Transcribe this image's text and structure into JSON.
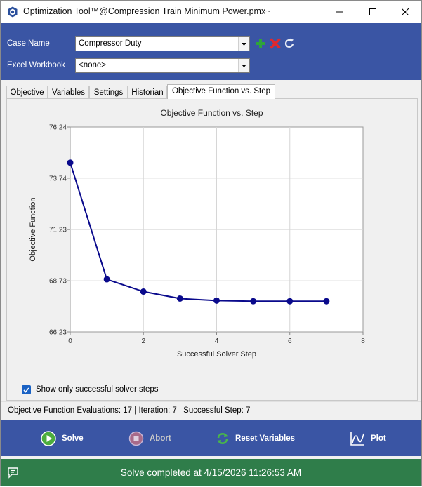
{
  "window": {
    "title": "Optimization Tool™@Compression Train Minimum Power.pmx~",
    "app_icon": "hexagon-app-icon",
    "controls": [
      "minimize-icon",
      "maximize-icon",
      "close-icon"
    ]
  },
  "header": {
    "case_name_label": "Case Name",
    "case_name_value": "Compressor Duty",
    "excel_workbook_label": "Excel Workbook",
    "excel_workbook_value": "<none>",
    "icons": [
      "add-icon",
      "delete-icon",
      "refresh-icon"
    ],
    "accent_color": "#3a55a4"
  },
  "tabs": [
    {
      "label": "Objective"
    },
    {
      "label": "Variables"
    },
    {
      "label": "Settings"
    },
    {
      "label": "Historian"
    },
    {
      "label": "Objective Function vs. Step",
      "active": true
    }
  ],
  "chart_data": {
    "type": "line",
    "title": "Objective Function vs. Step",
    "xlabel": "Successful Solver Step",
    "ylabel": "Objective Function",
    "x": [
      0,
      1,
      2,
      3,
      4,
      5,
      6,
      7
    ],
    "series": [
      {
        "values": [
          74.5,
          68.8,
          68.2,
          67.86,
          67.76,
          67.73,
          67.73,
          67.73
        ],
        "color": "#0a0a8c"
      }
    ],
    "xlim": [
      0,
      8
    ],
    "ylim": [
      66.23,
      76.24
    ],
    "xticks": [
      "0",
      "2",
      "4",
      "6",
      "8"
    ],
    "yticks": [
      "76.24",
      "73.74",
      "71.23",
      "68.73",
      "66.23"
    ],
    "grid": true
  },
  "options": {
    "show_successful_label": "Show only successful solver steps",
    "show_successful_checked": true
  },
  "status": {
    "text": "Objective Function Evaluations: 17 | Iteration: 7 | Successful Step: 7"
  },
  "footer": {
    "solve_label": "Solve",
    "abort_label": "Abort",
    "reset_label": "Reset Variables",
    "plot_label": "Plot"
  },
  "notification": {
    "message": "Solve completed at 4/15/2026 11:26:53 AM",
    "color": "#2f7d4a"
  }
}
